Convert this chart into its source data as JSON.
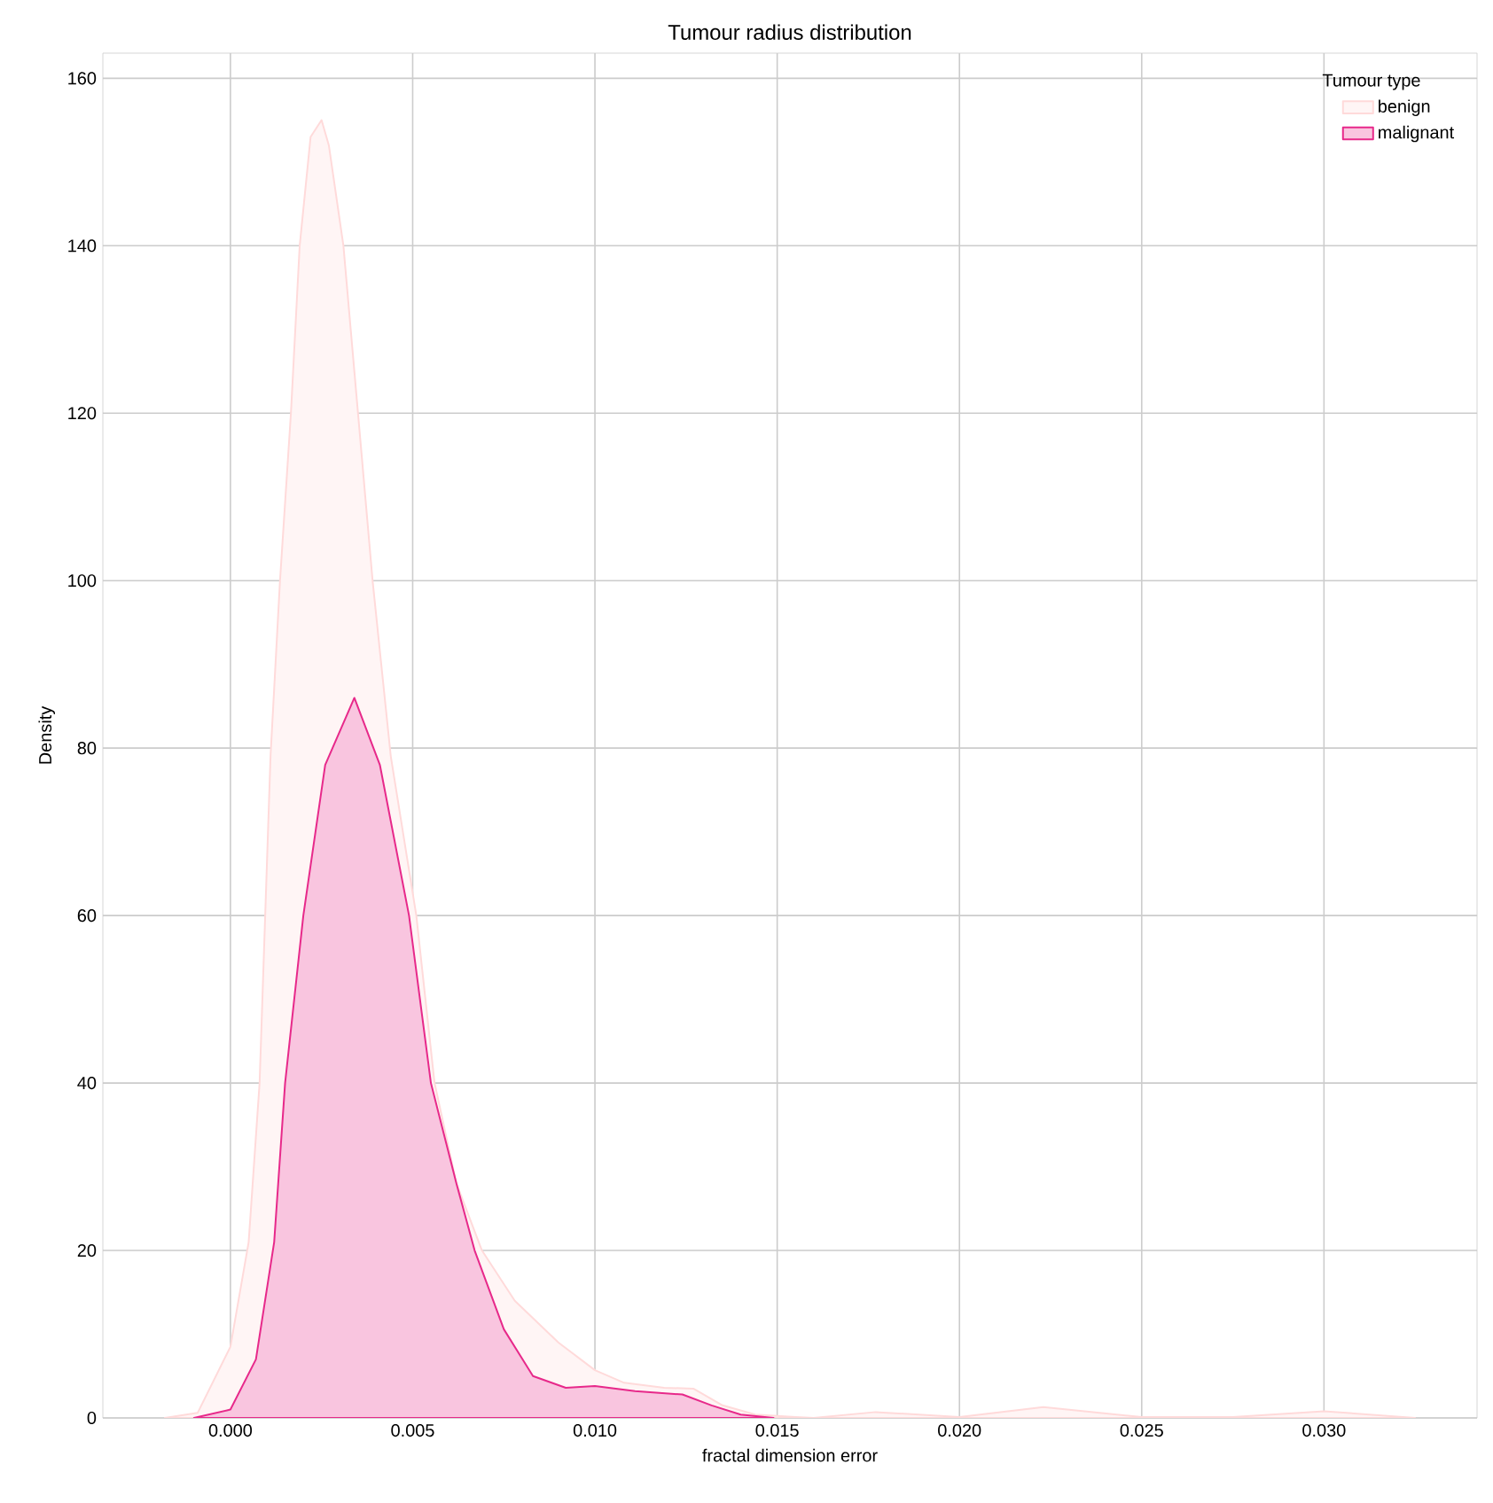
{
  "chart_data": {
    "type": "area",
    "title": "Tumour radius distribution",
    "xlabel": "fractal dimension error",
    "ylabel": "Density",
    "legend_title": "Tumour type",
    "xlim": [
      -0.0035,
      0.0342
    ],
    "ylim": [
      0,
      163
    ],
    "xticks": [
      {
        "value": 0,
        "label": "0.000"
      },
      {
        "value": 0.005,
        "label": "0.005"
      },
      {
        "value": 0.01,
        "label": "0.010"
      },
      {
        "value": 0.015,
        "label": "0.015"
      },
      {
        "value": 0.02,
        "label": "0.020"
      },
      {
        "value": 0.025,
        "label": "0.025"
      },
      {
        "value": 0.03,
        "label": "0.030"
      }
    ],
    "yticks": [
      0,
      20,
      40,
      60,
      80,
      100,
      120,
      140,
      160
    ],
    "grid": true,
    "legend": "top right",
    "series": [
      {
        "name": "benign",
        "color": "#ffdada",
        "x": [
          -0.0018,
          -0.0009,
          0,
          0.0005,
          0.0008,
          0.0011,
          0.00136,
          0.00166,
          0.0019,
          0.0022,
          0.0025,
          0.0027,
          0.0031,
          0.0035,
          0.0039,
          0.0044,
          0.0051,
          0.0056,
          0.0062,
          0.0069,
          0.0078,
          0.009,
          0.01,
          0.0108,
          0.0119,
          0.0127,
          0.0135,
          0.0144,
          0.0155,
          0.016,
          0.0177,
          0.02,
          0.0223,
          0.025,
          0.0275,
          0.03,
          0.0325
        ],
        "values": [
          0,
          0.6,
          8.5,
          21,
          40,
          79,
          100,
          120,
          140,
          153,
          155,
          152,
          140,
          120,
          100,
          79,
          60,
          40,
          28,
          20,
          14,
          9,
          5.7,
          4.2,
          3.6,
          3.5,
          1.5,
          0.4,
          0.1,
          0,
          0.7,
          0.1,
          1.3,
          0.1,
          0.1,
          0.8,
          0
        ]
      },
      {
        "name": "malignant",
        "color": "#e7298a",
        "x": [
          -0.001,
          0,
          0.0007,
          0.0012,
          0.0015,
          0.002,
          0.0026,
          0.0032,
          0.0034,
          0.0041,
          0.0049,
          0.0055,
          0.0062,
          0.0067,
          0.0075,
          0.0083,
          0.0092,
          0.01,
          0.0111,
          0.0124,
          0.0132,
          0.014,
          0.0149
        ],
        "values": [
          0,
          1,
          7,
          21,
          40,
          60,
          78,
          84,
          86,
          78,
          60,
          40,
          28,
          20,
          10.6,
          5,
          3.6,
          3.8,
          3.2,
          2.8,
          1.5,
          0.4,
          0
        ]
      }
    ]
  }
}
